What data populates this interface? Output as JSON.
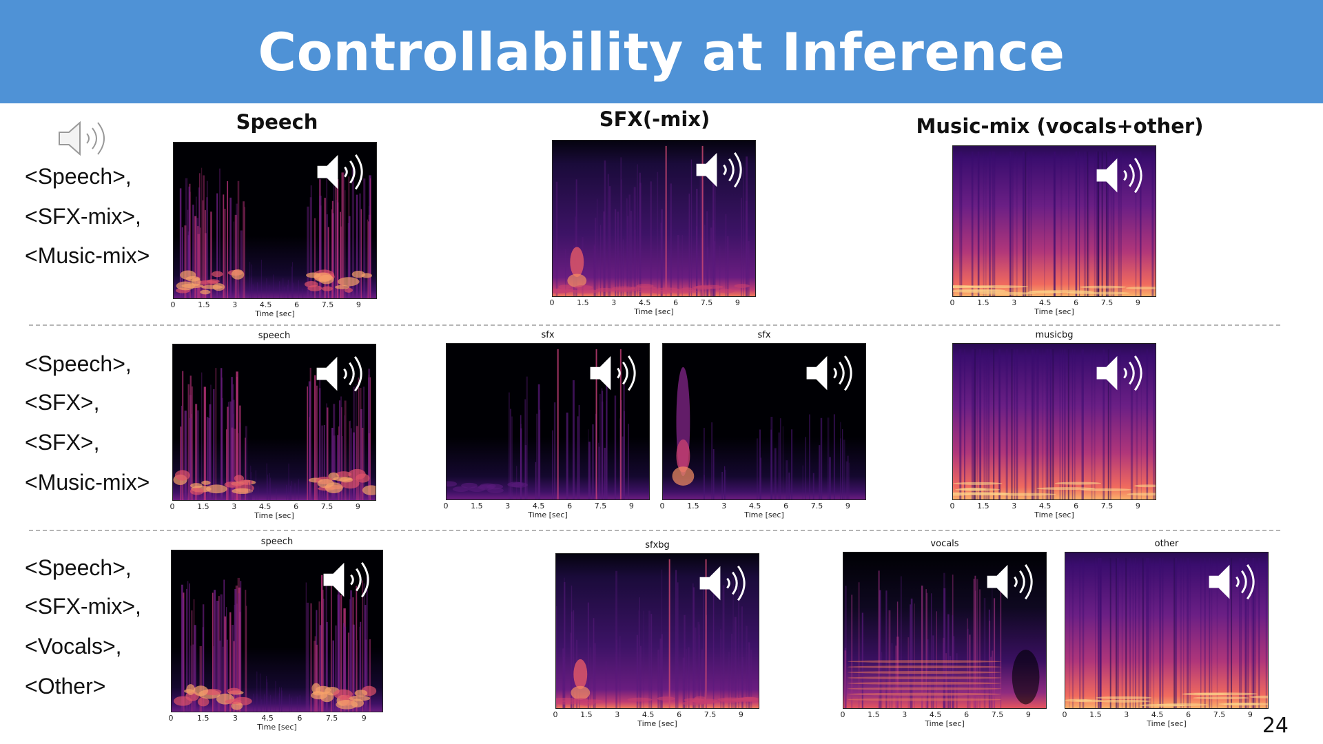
{
  "title": "Controllability at Inference",
  "page_number": "24",
  "column_titles": {
    "speech": "Speech",
    "sfx": "SFX(-mix)",
    "music": "Music-mix (vocals+other)"
  },
  "rows": [
    {
      "labels": [
        "<Speech>,",
        "<SFX-mix>,",
        "<Music-mix>"
      ]
    },
    {
      "labels": [
        "<Speech>,",
        "<SFX>,",
        "<SFX>,",
        "<Music-mix>"
      ]
    },
    {
      "labels": [
        "<Speech>,",
        "<SFX-mix>,",
        "<Vocals>,",
        "<Other>"
      ]
    }
  ],
  "spectrogram": {
    "x_ticks": [
      "0",
      "1.5",
      "3",
      "4.5",
      "6",
      "7.5",
      "9"
    ],
    "x_label": "Time [sec]"
  },
  "panels": [
    {
      "title": "",
      "kind": "speech"
    },
    {
      "title": "",
      "kind": "sfxmix"
    },
    {
      "title": "",
      "kind": "music"
    },
    {
      "title": "speech",
      "kind": "speech"
    },
    {
      "title": "sfx",
      "kind": "sfx1"
    },
    {
      "title": "sfx",
      "kind": "sfx2"
    },
    {
      "title": "musicbg",
      "kind": "music"
    },
    {
      "title": "speech",
      "kind": "speech"
    },
    {
      "title": "sfxbg",
      "kind": "sfxmix"
    },
    {
      "title": "vocals",
      "kind": "vocals"
    },
    {
      "title": "other",
      "kind": "music"
    }
  ],
  "icons": {
    "audio": "speaker-volume-icon"
  },
  "colors": {
    "header": "#4f92d6",
    "spectrogram_dark": "#000004",
    "spectrogram_mid": "#7b2382",
    "spectrogram_hot": "#f8765c"
  }
}
